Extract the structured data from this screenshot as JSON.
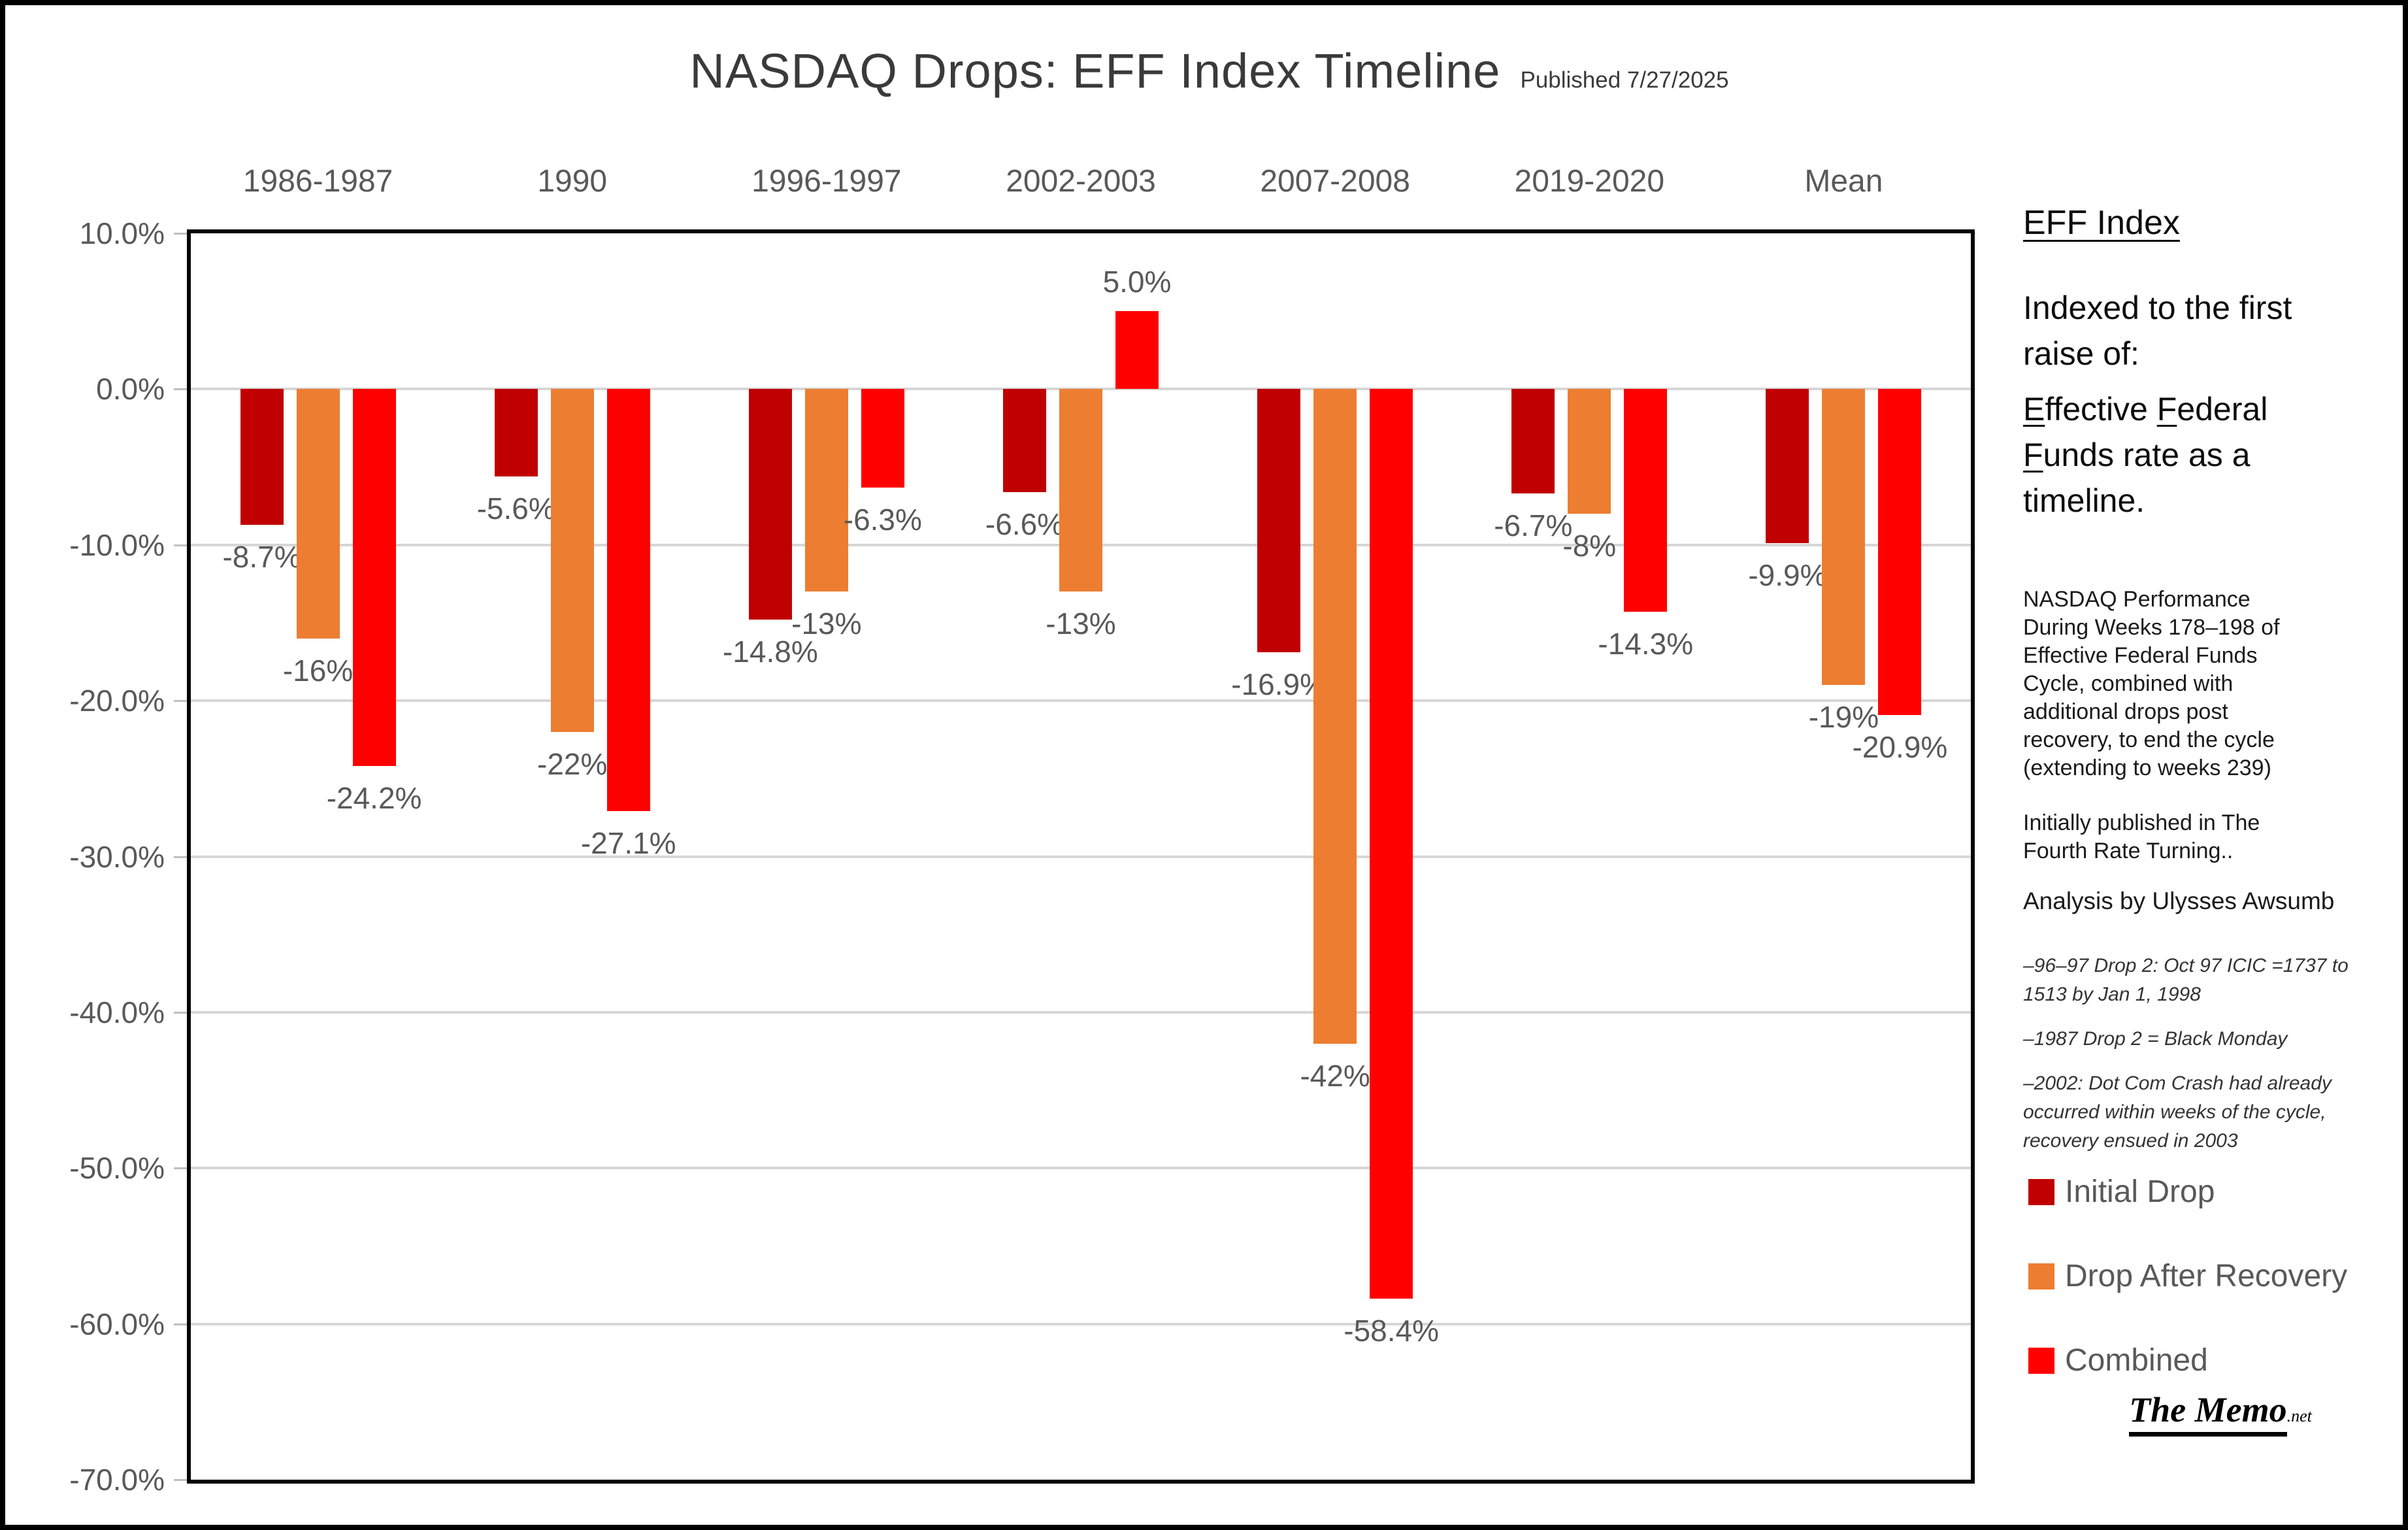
{
  "title": "NASDAQ Drops: EFF Index Timeline",
  "published": "Published 7/27/2025",
  "chart_data": {
    "type": "bar",
    "title": "NASDAQ Drops: EFF Index Timeline",
    "categories": [
      "1986-1987",
      "1990",
      "1996-1997",
      "2002-2003",
      "2007-2008",
      "2019-2020",
      "Mean"
    ],
    "series": [
      {
        "name": "Initial Drop",
        "color": "#C00000",
        "values": [
          -8.7,
          -5.6,
          -14.8,
          -6.6,
          -16.9,
          -6.7,
          -9.9
        ],
        "labels": [
          "-8.7%",
          "-5.6%",
          "-14.8%",
          "-6.6%",
          "-16.9%",
          "-6.7%",
          "-9.9%"
        ]
      },
      {
        "name": "Drop After Recovery",
        "color": "#ED7D31",
        "values": [
          -16,
          -22,
          -13,
          -13,
          -42,
          -8,
          -19
        ],
        "labels": [
          "-16%",
          "-22%",
          "-13%",
          "-13%",
          "-42%",
          "-8%",
          "-19%"
        ]
      },
      {
        "name": "Combined",
        "color": "#FF0000",
        "values": [
          -24.2,
          -27.1,
          -6.3,
          5.0,
          -58.4,
          -14.3,
          -20.9
        ],
        "labels": [
          "-24.2%",
          "-27.1%",
          "-6.3%",
          "5.0%",
          "-58.4%",
          "-14.3%",
          "-20.9%"
        ]
      }
    ],
    "y_tick_labels": [
      "10.0%",
      "0.0%",
      "-10.0%",
      "-20.0%",
      "-30.0%",
      "-40.0%",
      "-50.0%",
      "-60.0%",
      "-70.0%"
    ],
    "ylim": [
      -70,
      10
    ],
    "grid": true,
    "legend_position": "right",
    "data_label_color": "#595959",
    "gridline_color": "#D6D6D6"
  },
  "side_panel": {
    "heading": "EFF Index",
    "intro": "Indexed to the first raise of:",
    "emphasis": {
      "text": "Effective Federal Funds rate as a timeline.",
      "underline_word_initials": [
        "Effective",
        "Federal",
        "Funds"
      ]
    },
    "description": "NASDAQ Performance During Weeks 178–198 of Effective Federal Funds Cycle, combined with additional drops post recovery, to end the cycle (extending to weeks 239)",
    "publication_note": "Initially published in The Fourth Rate Turning..",
    "analysis_credit": "Analysis by Ulysses Awsumb",
    "footnotes": [
      "–96–97 Drop 2: Oct 97 ICIC =1737 to 1513 by Jan 1, 1998",
      "–1987 Drop 2 = Black Monday",
      "–2002: Dot Com Crash had already occurred within weeks of the cycle, recovery ensued in 2003"
    ],
    "brand": {
      "name": "The Memo",
      "suffix": ".net"
    }
  }
}
